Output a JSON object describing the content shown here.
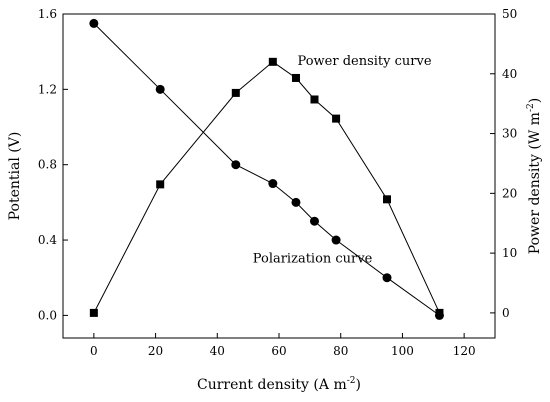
{
  "chart_data": {
    "type": "line",
    "x_axis": {
      "label_main": "Current density (A m",
      "label_sup": "-2",
      "label_end": ")",
      "min": -10,
      "max": 130,
      "ticks": [
        0,
        20,
        40,
        60,
        80,
        100,
        120
      ],
      "tick_labels": [
        "0",
        "20",
        "40",
        "60",
        "80",
        "100",
        "120"
      ]
    },
    "y_left": {
      "label": "Potential (V)",
      "min": -0.12,
      "max": 1.6,
      "ticks": [
        0.0,
        0.4,
        0.8,
        1.2,
        1.6
      ],
      "tick_labels": [
        "0.0",
        "0.4",
        "0.8",
        "1.2",
        "1.6"
      ]
    },
    "y_right": {
      "label_main": "Power density (W m",
      "label_sup": "-2",
      "label_end": ")",
      "min": -4.2,
      "max": 50,
      "ticks": [
        0,
        10,
        20,
        30,
        40,
        50
      ],
      "tick_labels": [
        "0",
        "10",
        "20",
        "30",
        "40",
        "50"
      ]
    },
    "grid": false,
    "series": [
      {
        "name": "Polarization curve",
        "axis": "left",
        "marker": "circle",
        "x": [
          0,
          21.5,
          46,
          58,
          65.5,
          71.5,
          78.5,
          95,
          112
        ],
        "y": [
          1.55,
          1.2,
          0.8,
          0.7,
          0.6,
          0.5,
          0.4,
          0.2,
          0.0
        ]
      },
      {
        "name": "Power density curve",
        "axis": "right",
        "marker": "square",
        "x": [
          0,
          21.5,
          46,
          58,
          65.5,
          71.5,
          78.5,
          95,
          112
        ],
        "y": [
          0,
          21.5,
          36.8,
          42,
          39.3,
          35.7,
          32.5,
          19,
          0
        ]
      }
    ],
    "annotations": [
      {
        "text": "Power density curve",
        "series": "right",
        "at_x": 66,
        "at_y": 41.5
      },
      {
        "text": "Polarization curve",
        "series": "left",
        "at_x": 51.5,
        "at_y": 0.28
      }
    ]
  }
}
